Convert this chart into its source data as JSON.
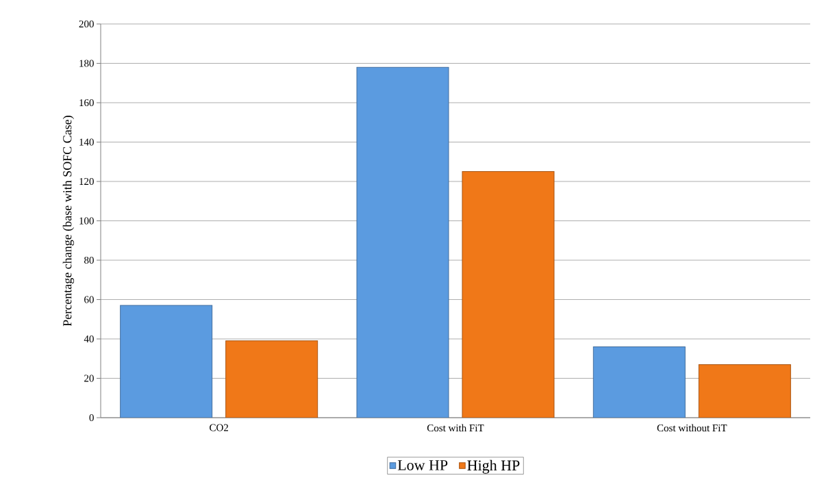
{
  "chart_data": {
    "type": "bar",
    "ylabel": "Percentage change (base with SOFC Case)",
    "categories": [
      "CO2",
      "Cost with FiT",
      "Cost without FiT"
    ],
    "series": [
      {
        "name": "Low HP",
        "color": "#5b9be0",
        "values": [
          57,
          178,
          36
        ]
      },
      {
        "name": "High HP",
        "color": "#f07818",
        "values": [
          39,
          125,
          27
        ]
      }
    ],
    "ylim": [
      0,
      200
    ],
    "yticks": [
      0,
      20,
      40,
      60,
      80,
      100,
      120,
      140,
      160,
      180,
      200
    ],
    "grid": "y",
    "legend": "bottom"
  }
}
